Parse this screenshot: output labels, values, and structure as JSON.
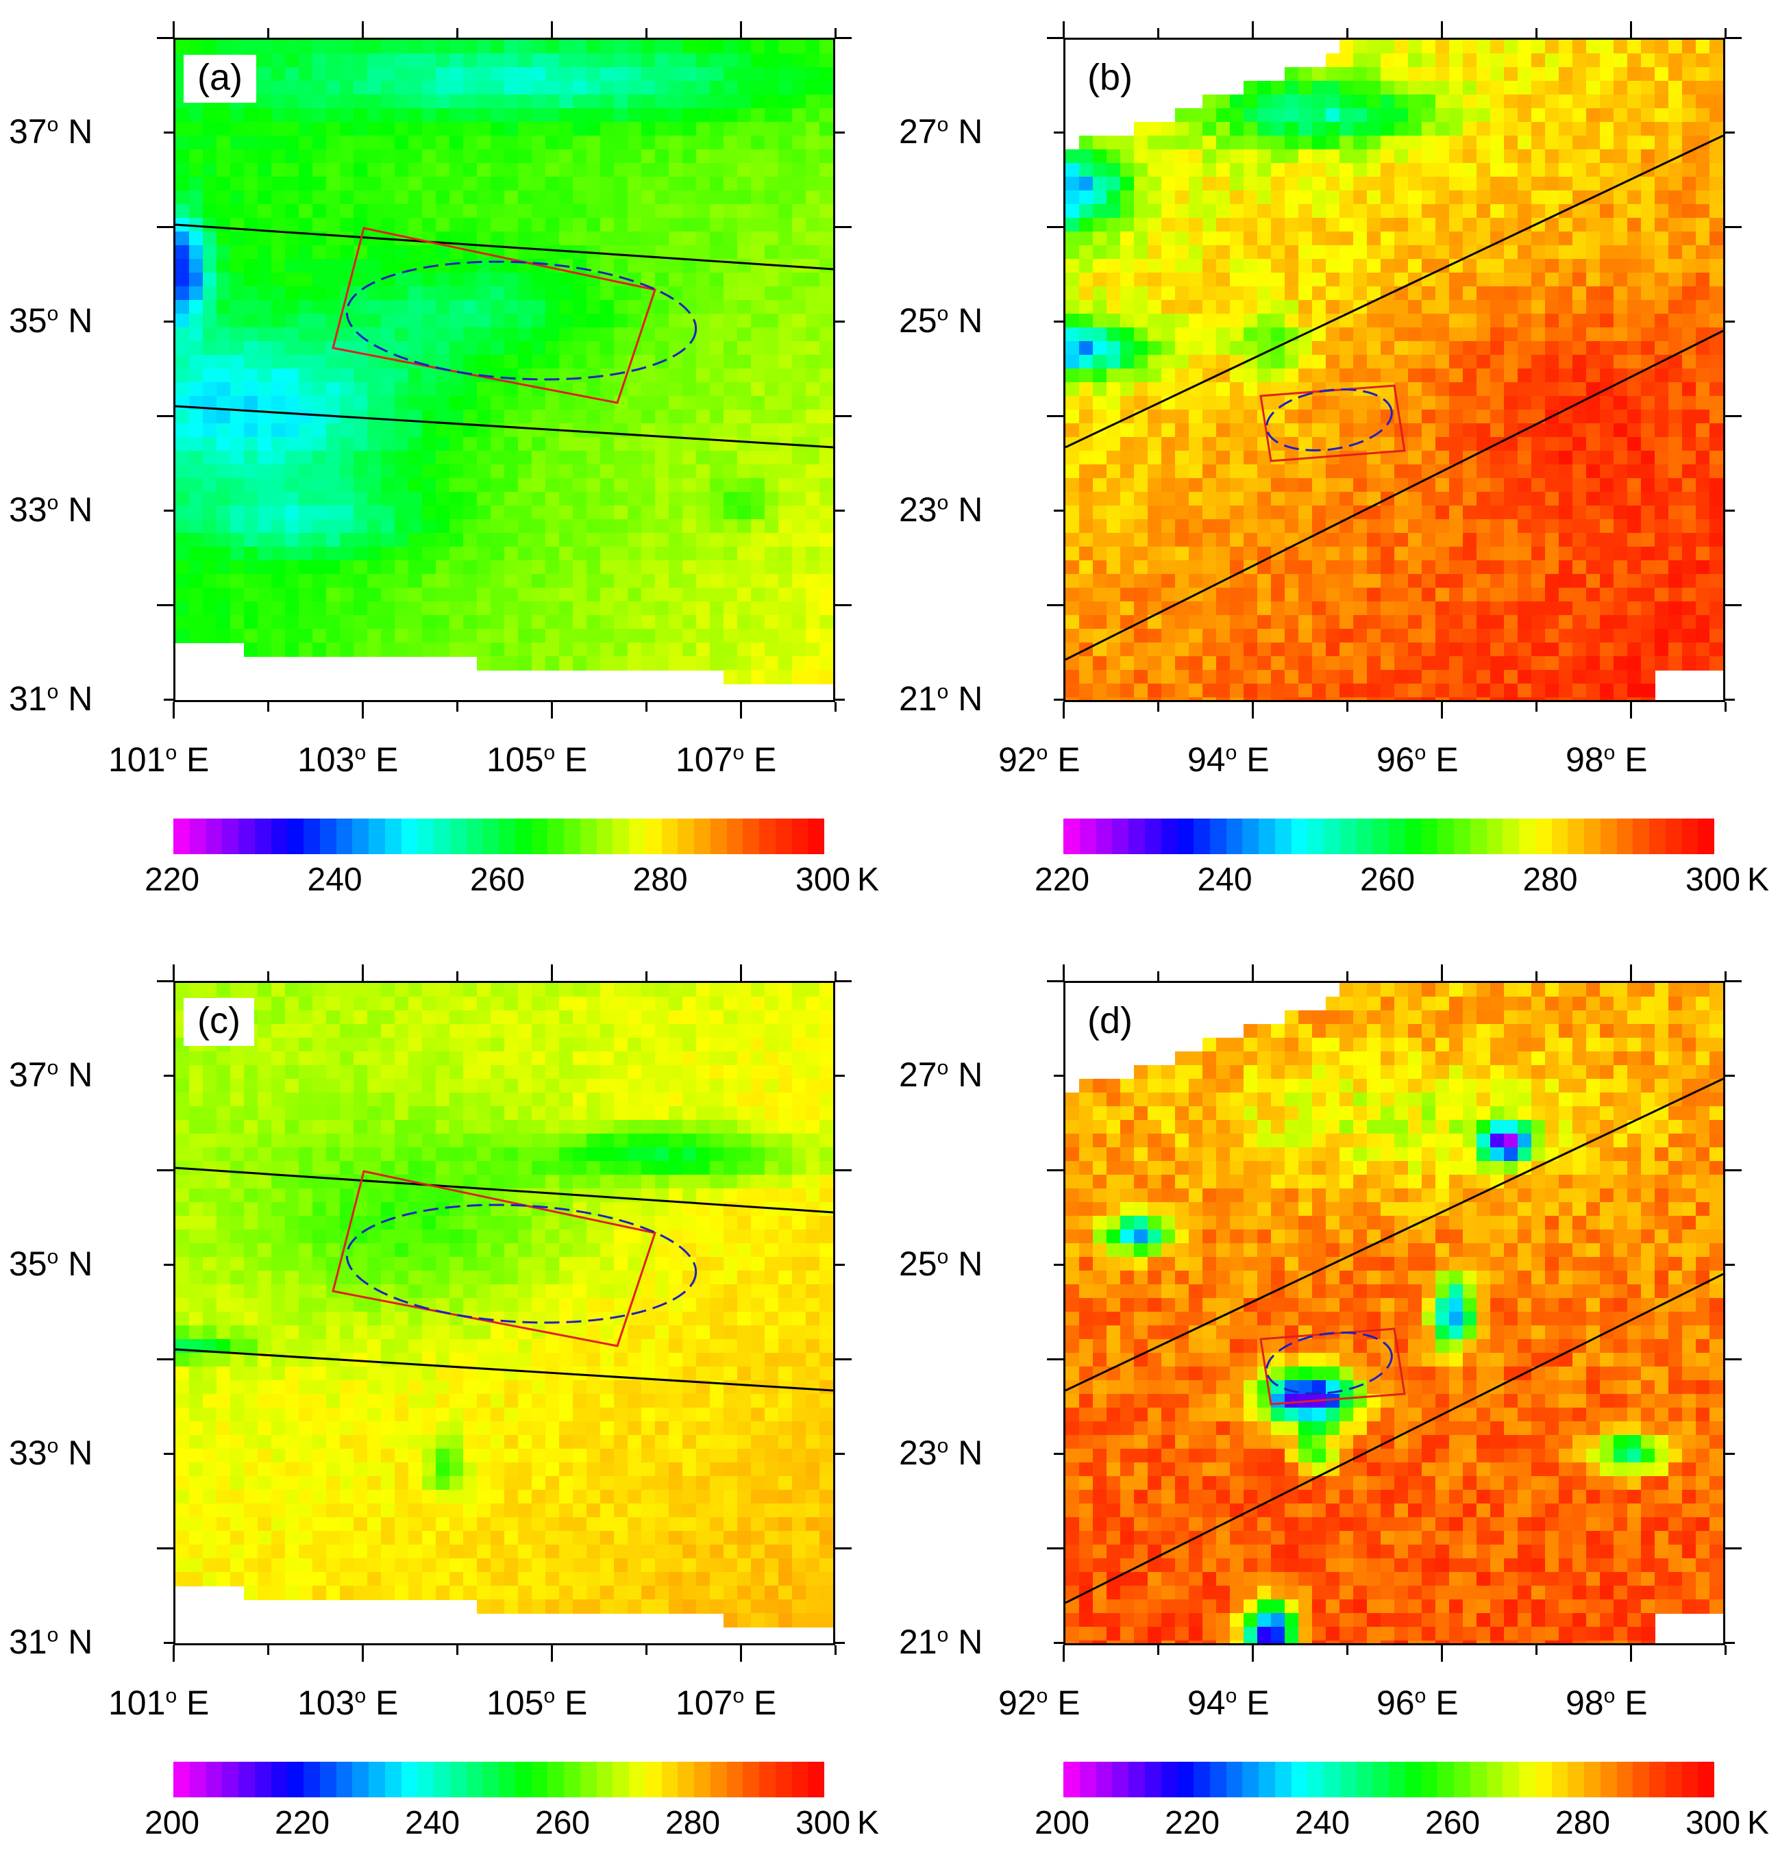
{
  "panels": [
    {
      "label": "(a)",
      "lat_labels": [
        "37",
        "35",
        "33",
        "31"
      ],
      "lat_suffix": "N",
      "lon_labels": [
        "101",
        "103",
        "105",
        "107"
      ],
      "lon_suffix": "E",
      "colorbar": {
        "ticks": [
          "220",
          "240",
          "260",
          "280",
          "300"
        ],
        "unit": "K",
        "range": [
          220,
          300
        ]
      },
      "field": "a"
    },
    {
      "label": "(b)",
      "lat_labels": [
        "27",
        "25",
        "23",
        "21"
      ],
      "lat_suffix": "N",
      "lon_labels": [
        "92",
        "94",
        "96",
        "98"
      ],
      "lon_suffix": "E",
      "colorbar": {
        "ticks": [
          "220",
          "240",
          "260",
          "280",
          "300"
        ],
        "unit": "K",
        "range": [
          220,
          300
        ]
      },
      "field": "b"
    },
    {
      "label": "(c)",
      "lat_labels": [
        "37",
        "35",
        "33",
        "31"
      ],
      "lat_suffix": "N",
      "lon_labels": [
        "101",
        "103",
        "105",
        "107"
      ],
      "lon_suffix": "E",
      "colorbar": {
        "ticks": [
          "200",
          "220",
          "240",
          "260",
          "280",
          "300"
        ],
        "unit": "K",
        "range": [
          200,
          300
        ]
      },
      "field": "c"
    },
    {
      "label": "(d)",
      "lat_labels": [
        "27",
        "25",
        "23",
        "21"
      ],
      "lat_suffix": "N",
      "lon_labels": [
        "92",
        "94",
        "96",
        "98"
      ],
      "lon_suffix": "E",
      "colorbar": {
        "ticks": [
          "200",
          "220",
          "240",
          "260",
          "280",
          "300"
        ],
        "unit": "K",
        "range": [
          200,
          300
        ]
      },
      "field": "d"
    }
  ],
  "degree_symbol": "o",
  "colors": {
    "scale": [
      "#ff00ff",
      "#8000ff",
      "#0000ff",
      "#0080ff",
      "#00ffff",
      "#00ff80",
      "#00ff00",
      "#80ff00",
      "#ffff00",
      "#ffa000",
      "#ff4000",
      "#ff0000"
    ],
    "swath_edge": "#000000",
    "rectangle": "#e02020",
    "ellipse": "#2020c0"
  }
}
